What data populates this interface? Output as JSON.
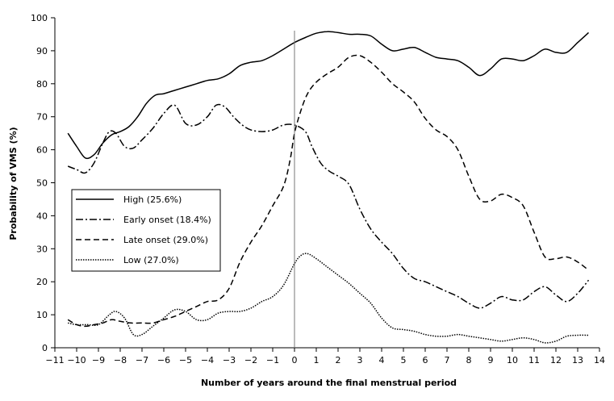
{
  "chart_data": {
    "type": "line",
    "title": "",
    "xlabel": "Number of years around the final menstrual period",
    "ylabel": "Probability of VMS (%)",
    "xlim": [
      -11,
      14
    ],
    "ylim": [
      0,
      100
    ],
    "xticks": [
      -11,
      -10,
      -9,
      -8,
      -7,
      -6,
      -5,
      -4,
      -3,
      -2,
      -1,
      0,
      1,
      2,
      3,
      4,
      5,
      6,
      7,
      8,
      9,
      10,
      11,
      12,
      13,
      14
    ],
    "yticks": [
      0,
      10,
      20,
      30,
      40,
      50,
      60,
      70,
      80,
      90,
      100
    ],
    "reference_line_x": 0,
    "grid": false,
    "legend_position": "left",
    "series": [
      {
        "name": "High (25.6%)",
        "line_style": "solid",
        "points": [
          [
            -10.4,
            65
          ],
          [
            -10,
            61
          ],
          [
            -9.6,
            57.5
          ],
          [
            -9.2,
            58.5
          ],
          [
            -8.8,
            62
          ],
          [
            -8.4,
            64.5
          ],
          [
            -8,
            65.5
          ],
          [
            -7.6,
            67
          ],
          [
            -7.2,
            70
          ],
          [
            -6.8,
            74
          ],
          [
            -6.4,
            76.5
          ],
          [
            -6,
            77
          ],
          [
            -5.5,
            78
          ],
          [
            -5,
            79
          ],
          [
            -4.5,
            80
          ],
          [
            -4,
            81
          ],
          [
            -3.5,
            81.5
          ],
          [
            -3,
            83
          ],
          [
            -2.5,
            85.5
          ],
          [
            -2,
            86.5
          ],
          [
            -1.5,
            87
          ],
          [
            -1,
            88.5
          ],
          [
            -0.5,
            90.5
          ],
          [
            0,
            92.5
          ],
          [
            0.5,
            94
          ],
          [
            1,
            95.3
          ],
          [
            1.5,
            95.8
          ],
          [
            2,
            95.5
          ],
          [
            2.5,
            95
          ],
          [
            3,
            95
          ],
          [
            3.5,
            94.5
          ],
          [
            4,
            92
          ],
          [
            4.5,
            90
          ],
          [
            5,
            90.5
          ],
          [
            5.5,
            91
          ],
          [
            6,
            89.5
          ],
          [
            6.5,
            88
          ],
          [
            7,
            87.5
          ],
          [
            7.5,
            87
          ],
          [
            8,
            85
          ],
          [
            8.5,
            82.5
          ],
          [
            9,
            84.5
          ],
          [
            9.5,
            87.5
          ],
          [
            10,
            87.5
          ],
          [
            10.5,
            87
          ],
          [
            11,
            88.5
          ],
          [
            11.5,
            90.5
          ],
          [
            12,
            89.5
          ],
          [
            12.5,
            89.5
          ],
          [
            13,
            92.5
          ],
          [
            13.5,
            95.5
          ]
        ]
      },
      {
        "name": "Early onset (18.4%)",
        "line_style": "dash-dot",
        "points": [
          [
            -10.4,
            55
          ],
          [
            -10,
            54
          ],
          [
            -9.6,
            53
          ],
          [
            -9.2,
            56
          ],
          [
            -8.8,
            62
          ],
          [
            -8.5,
            65.5
          ],
          [
            -8.2,
            65
          ],
          [
            -7.8,
            61
          ],
          [
            -7.4,
            60.5
          ],
          [
            -7,
            63
          ],
          [
            -6.5,
            66.5
          ],
          [
            -6,
            71
          ],
          [
            -5.5,
            73.5
          ],
          [
            -5,
            68
          ],
          [
            -4.5,
            67.5
          ],
          [
            -4,
            70
          ],
          [
            -3.6,
            73.5
          ],
          [
            -3.2,
            73
          ],
          [
            -2.8,
            70
          ],
          [
            -2.4,
            67.5
          ],
          [
            -2,
            66
          ],
          [
            -1.5,
            65.5
          ],
          [
            -1,
            66
          ],
          [
            -0.5,
            67.5
          ],
          [
            0,
            67.5
          ],
          [
            0.5,
            65.5
          ],
          [
            0.8,
            61
          ],
          [
            1.2,
            56
          ],
          [
            1.6,
            53.5
          ],
          [
            2,
            52
          ],
          [
            2.5,
            49.5
          ],
          [
            3,
            42
          ],
          [
            3.5,
            36
          ],
          [
            4,
            32
          ],
          [
            4.5,
            28.5
          ],
          [
            5,
            24
          ],
          [
            5.5,
            21
          ],
          [
            6,
            20
          ],
          [
            6.5,
            18.5
          ],
          [
            7,
            17
          ],
          [
            7.5,
            15.5
          ],
          [
            8,
            13.5
          ],
          [
            8.5,
            12
          ],
          [
            9,
            13.5
          ],
          [
            9.5,
            15.5
          ],
          [
            10,
            14.5
          ],
          [
            10.5,
            14.5
          ],
          [
            11,
            17
          ],
          [
            11.5,
            18.5
          ],
          [
            12,
            16
          ],
          [
            12.5,
            14
          ],
          [
            13,
            16.5
          ],
          [
            13.5,
            20.5
          ]
        ]
      },
      {
        "name": "Late onset (29.0%)",
        "line_style": "dashed",
        "points": [
          [
            -10.4,
            8.5
          ],
          [
            -10,
            7
          ],
          [
            -9.6,
            6.5
          ],
          [
            -9.2,
            7
          ],
          [
            -8.8,
            7.5
          ],
          [
            -8.4,
            8.5
          ],
          [
            -8,
            8
          ],
          [
            -7.5,
            7.5
          ],
          [
            -7,
            7.5
          ],
          [
            -6.5,
            7.5
          ],
          [
            -6,
            8.5
          ],
          [
            -5.5,
            9.5
          ],
          [
            -5,
            11
          ],
          [
            -4.5,
            12.5
          ],
          [
            -4,
            14
          ],
          [
            -3.5,
            14.5
          ],
          [
            -3,
            18
          ],
          [
            -2.5,
            26
          ],
          [
            -2,
            32
          ],
          [
            -1.5,
            37
          ],
          [
            -1,
            43
          ],
          [
            -0.5,
            49
          ],
          [
            -0.2,
            57
          ],
          [
            0,
            65
          ],
          [
            0.3,
            72
          ],
          [
            0.6,
            77
          ],
          [
            1,
            80.5
          ],
          [
            1.5,
            83
          ],
          [
            2,
            85
          ],
          [
            2.5,
            88
          ],
          [
            3,
            88.5
          ],
          [
            3.5,
            86.5
          ],
          [
            4,
            83.5
          ],
          [
            4.5,
            80
          ],
          [
            5,
            77.5
          ],
          [
            5.5,
            74.5
          ],
          [
            6,
            69.5
          ],
          [
            6.5,
            66
          ],
          [
            7,
            64
          ],
          [
            7.5,
            60
          ],
          [
            8,
            52
          ],
          [
            8.5,
            45
          ],
          [
            9,
            44.5
          ],
          [
            9.5,
            46.5
          ],
          [
            10,
            45.5
          ],
          [
            10.5,
            43
          ],
          [
            11,
            35
          ],
          [
            11.5,
            27.5
          ],
          [
            12,
            27
          ],
          [
            12.5,
            27.5
          ],
          [
            13,
            26
          ],
          [
            13.5,
            23.5
          ]
        ]
      },
      {
        "name": "Low (27.0%)",
        "line_style": "dotted",
        "points": [
          [
            -10.4,
            7.5
          ],
          [
            -10,
            7
          ],
          [
            -9.5,
            7
          ],
          [
            -9,
            7
          ],
          [
            -8.5,
            10
          ],
          [
            -8.2,
            11
          ],
          [
            -7.8,
            9
          ],
          [
            -7.4,
            4
          ],
          [
            -7,
            4
          ],
          [
            -6.5,
            6.5
          ],
          [
            -6,
            9
          ],
          [
            -5.5,
            11.5
          ],
          [
            -5,
            11
          ],
          [
            -4.5,
            8.5
          ],
          [
            -4,
            8.5
          ],
          [
            -3.5,
            10.5
          ],
          [
            -3,
            11
          ],
          [
            -2.5,
            11
          ],
          [
            -2,
            12
          ],
          [
            -1.5,
            14
          ],
          [
            -1,
            15.5
          ],
          [
            -0.5,
            19
          ],
          [
            0,
            25.5
          ],
          [
            0.3,
            28
          ],
          [
            0.6,
            28.5
          ],
          [
            1,
            27
          ],
          [
            1.5,
            24.5
          ],
          [
            2,
            22
          ],
          [
            2.5,
            19.5
          ],
          [
            3,
            16.5
          ],
          [
            3.5,
            13.5
          ],
          [
            4,
            9
          ],
          [
            4.5,
            6
          ],
          [
            5,
            5.5
          ],
          [
            5.5,
            5
          ],
          [
            6,
            4
          ],
          [
            6.5,
            3.5
          ],
          [
            7,
            3.5
          ],
          [
            7.5,
            4
          ],
          [
            8,
            3.5
          ],
          [
            8.5,
            3
          ],
          [
            9,
            2.5
          ],
          [
            9.5,
            2
          ],
          [
            10,
            2.5
          ],
          [
            10.5,
            3
          ],
          [
            11,
            2.5
          ],
          [
            11.5,
            1.5
          ],
          [
            12,
            2
          ],
          [
            12.5,
            3.5
          ],
          [
            13,
            3.8
          ],
          [
            13.5,
            3.8
          ]
        ]
      }
    ]
  }
}
